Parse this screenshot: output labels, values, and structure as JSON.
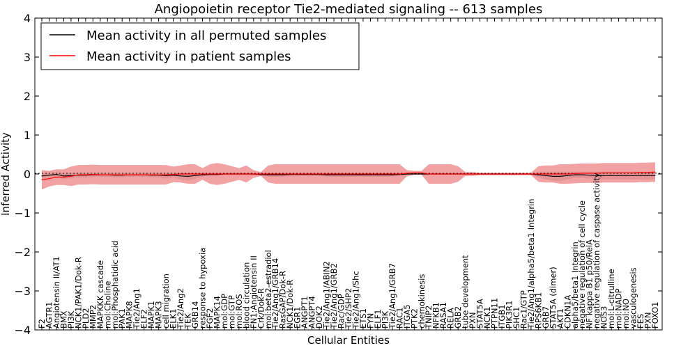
{
  "chart_data": {
    "type": "line",
    "title": "Angiopoietin receptor Tie2-mediated signaling -- 613 samples",
    "xlabel": "Cellular Entities",
    "ylabel": "Inferred Activity",
    "ylim": [
      -4,
      4
    ],
    "yticks": [
      -4,
      -3,
      -2,
      -1,
      0,
      1,
      2,
      3,
      4
    ],
    "grid": false,
    "legend": {
      "position": "top-left",
      "entries": [
        {
          "name": "Mean activity in all permuted samples",
          "color": "#000000"
        },
        {
          "name": "Mean activity in patient samples",
          "color": "#ff0000"
        }
      ]
    },
    "colors": {
      "permuted": "#000000",
      "patient": "#ff0000",
      "patient_band": "#e8454a",
      "permuted_band": "#c8c8c8"
    },
    "categories": [
      "F2",
      "AGTR1",
      "Angiotensin II/AT1",
      "BMX",
      "PI3K",
      "NCK1/PAK1/Dok-R",
      "PLD2",
      "MMP2",
      "MAPKKK cascade",
      "mol:Choline",
      "mol:Phosphatidic acid",
      "PAK1",
      "MAPK8",
      "Tie2/Ang1",
      "ELF2",
      "MAPK1",
      "MAPK3",
      "cell migration",
      "ELK1",
      "Tie2/Ang2",
      "TEK",
      "GRB14",
      "response to hypoxia",
      "FGF2",
      "MAPK14",
      "mol:GDP",
      "mol:GTP",
      "mol:ROS",
      "blood circulation",
      "FN1:Angiotensin II",
      "Crk/Dok-R",
      "mol:beta2-estradiol",
      "Tie2/Ang1/GRB14",
      "RasGAP/Dok-R",
      "NCK1/Dok-R",
      "EGR1",
      "ANGPT1",
      "ANGPT4",
      "DOK2",
      "Tie2/Ang1/ABIN2",
      "Tie2/Ang1/GRB2",
      "Rac/GDP",
      "Tie2/SHP2",
      "Tie2/Ang1/Shc",
      "ETS1",
      "FYN",
      "ELF1",
      "PI3K",
      "Tie2/Ang1/GRB7",
      "RAC1",
      "ITGA5",
      "PTK2",
      "chemokinesis",
      "TNIP2",
      "NFKB1",
      "RASA1",
      "RELA",
      "GRB2",
      "tube development",
      "PXN",
      "STAT5A",
      "NCK1",
      "PTPN11",
      "ITGB1",
      "PIK3R1",
      "SHC1",
      "Rac1/GTP",
      "Tie2/Ang1/alpha5/beta1 Integrin",
      "RPS6KB1",
      "GRB7",
      "STAT5A (dimer)",
      "AKT1",
      "CDKN1A",
      "alpha5/beta1 Integrin",
      "negative regulation of cell cycle",
      "NF kappa B1 p50/RelA",
      "negative regulation of caspase activity",
      "NOS3",
      "mol:L-citrulline",
      "mol:NADP",
      "mol:NO",
      "vasculogenesis",
      "FES",
      "PXN",
      "FOXO1"
    ],
    "series": [
      {
        "name": "Mean activity in all permuted samples",
        "values": [
          -0.05,
          -0.03,
          -0.01,
          -0.05,
          -0.04,
          -0.03,
          -0.03,
          -0.02,
          -0.02,
          -0.02,
          -0.03,
          -0.03,
          -0.02,
          -0.02,
          -0.02,
          -0.03,
          -0.03,
          -0.04,
          -0.03,
          -0.05,
          -0.06,
          -0.04,
          -0.02,
          -0.01,
          -0.01,
          0.0,
          0.0,
          0.0,
          0.0,
          0.0,
          -0.01,
          -0.02,
          -0.02,
          -0.02,
          -0.01,
          -0.01,
          -0.01,
          -0.01,
          -0.01,
          -0.02,
          -0.02,
          -0.02,
          -0.02,
          -0.02,
          -0.02,
          -0.02,
          -0.02,
          -0.02,
          -0.02,
          -0.01,
          0.0,
          0.0,
          0.0,
          0.0,
          0.0,
          0.0,
          0.0,
          0.0,
          0.0,
          0.0,
          0.0,
          0.0,
          0.0,
          0.0,
          0.0,
          0.0,
          0.0,
          0.0,
          -0.02,
          -0.04,
          -0.06,
          -0.06,
          -0.04,
          -0.02,
          -0.02,
          -0.03,
          -0.04,
          -0.04,
          -0.04,
          -0.04,
          -0.04,
          -0.04,
          -0.04,
          -0.04,
          -0.04
        ],
        "band": [
          0.08,
          0.06,
          0.05,
          0.08,
          0.07,
          0.06,
          0.06,
          0.06,
          0.05,
          0.05,
          0.06,
          0.06,
          0.05,
          0.05,
          0.05,
          0.06,
          0.06,
          0.08,
          0.06,
          0.09,
          0.1,
          0.08,
          0.05,
          0.04,
          0.04,
          0.03,
          0.03,
          0.03,
          0.03,
          0.03,
          0.04,
          0.05,
          0.05,
          0.05,
          0.04,
          0.04,
          0.04,
          0.04,
          0.04,
          0.05,
          0.05,
          0.05,
          0.05,
          0.05,
          0.05,
          0.05,
          0.05,
          0.05,
          0.05,
          0.04,
          0.02,
          0.02,
          0.02,
          0.02,
          0.02,
          0.02,
          0.02,
          0.02,
          0.02,
          0.02,
          0.02,
          0.02,
          0.02,
          0.02,
          0.02,
          0.02,
          0.02,
          0.02,
          0.06,
          0.1,
          0.12,
          0.12,
          0.1,
          0.08,
          0.08,
          0.09,
          0.1,
          0.1,
          0.1,
          0.1,
          0.1,
          0.1,
          0.1,
          0.1,
          0.1
        ]
      },
      {
        "name": "Mean activity in patient samples",
        "values": [
          -0.15,
          -0.12,
          -0.08,
          -0.08,
          -0.06,
          -0.02,
          -0.02,
          -0.01,
          -0.02,
          -0.02,
          -0.02,
          -0.02,
          -0.02,
          -0.02,
          -0.02,
          -0.02,
          -0.02,
          -0.02,
          -0.01,
          0.0,
          0.0,
          0.0,
          0.0,
          0.0,
          0.0,
          0.0,
          0.0,
          0.0,
          0.0,
          0.0,
          0.0,
          0.0,
          0.0,
          0.0,
          0.0,
          0.0,
          0.0,
          0.0,
          0.0,
          0.0,
          0.0,
          0.0,
          0.0,
          0.0,
          0.0,
          0.0,
          0.0,
          0.0,
          0.0,
          0.0,
          0.02,
          0.03,
          0.03,
          0.0,
          0.0,
          0.0,
          0.0,
          0.0,
          0.0,
          0.0,
          0.0,
          0.0,
          0.0,
          0.0,
          0.0,
          0.0,
          0.0,
          0.0,
          0.0,
          0.0,
          0.0,
          0.0,
          0.0,
          0.01,
          0.02,
          0.02,
          0.02,
          0.03,
          0.03,
          0.03,
          0.03,
          0.03,
          0.04,
          0.04,
          0.05
        ],
        "band": [
          0.25,
          0.2,
          0.2,
          0.2,
          0.25,
          0.25,
          0.25,
          0.25,
          0.25,
          0.25,
          0.25,
          0.25,
          0.25,
          0.25,
          0.25,
          0.25,
          0.25,
          0.25,
          0.2,
          0.22,
          0.25,
          0.25,
          0.15,
          0.25,
          0.28,
          0.25,
          0.2,
          0.15,
          0.22,
          0.1,
          0.05,
          0.22,
          0.25,
          0.25,
          0.25,
          0.25,
          0.25,
          0.25,
          0.25,
          0.25,
          0.25,
          0.25,
          0.25,
          0.25,
          0.25,
          0.25,
          0.25,
          0.25,
          0.25,
          0.25,
          0.08,
          0.05,
          0.05,
          0.25,
          0.25,
          0.25,
          0.25,
          0.2,
          0.05,
          0.05,
          0.03,
          0.03,
          0.03,
          0.03,
          0.03,
          0.03,
          0.03,
          0.03,
          0.2,
          0.22,
          0.22,
          0.25,
          0.25,
          0.25,
          0.25,
          0.25,
          0.25,
          0.25,
          0.25,
          0.25,
          0.25,
          0.25,
          0.25,
          0.25,
          0.25
        ]
      }
    ]
  }
}
